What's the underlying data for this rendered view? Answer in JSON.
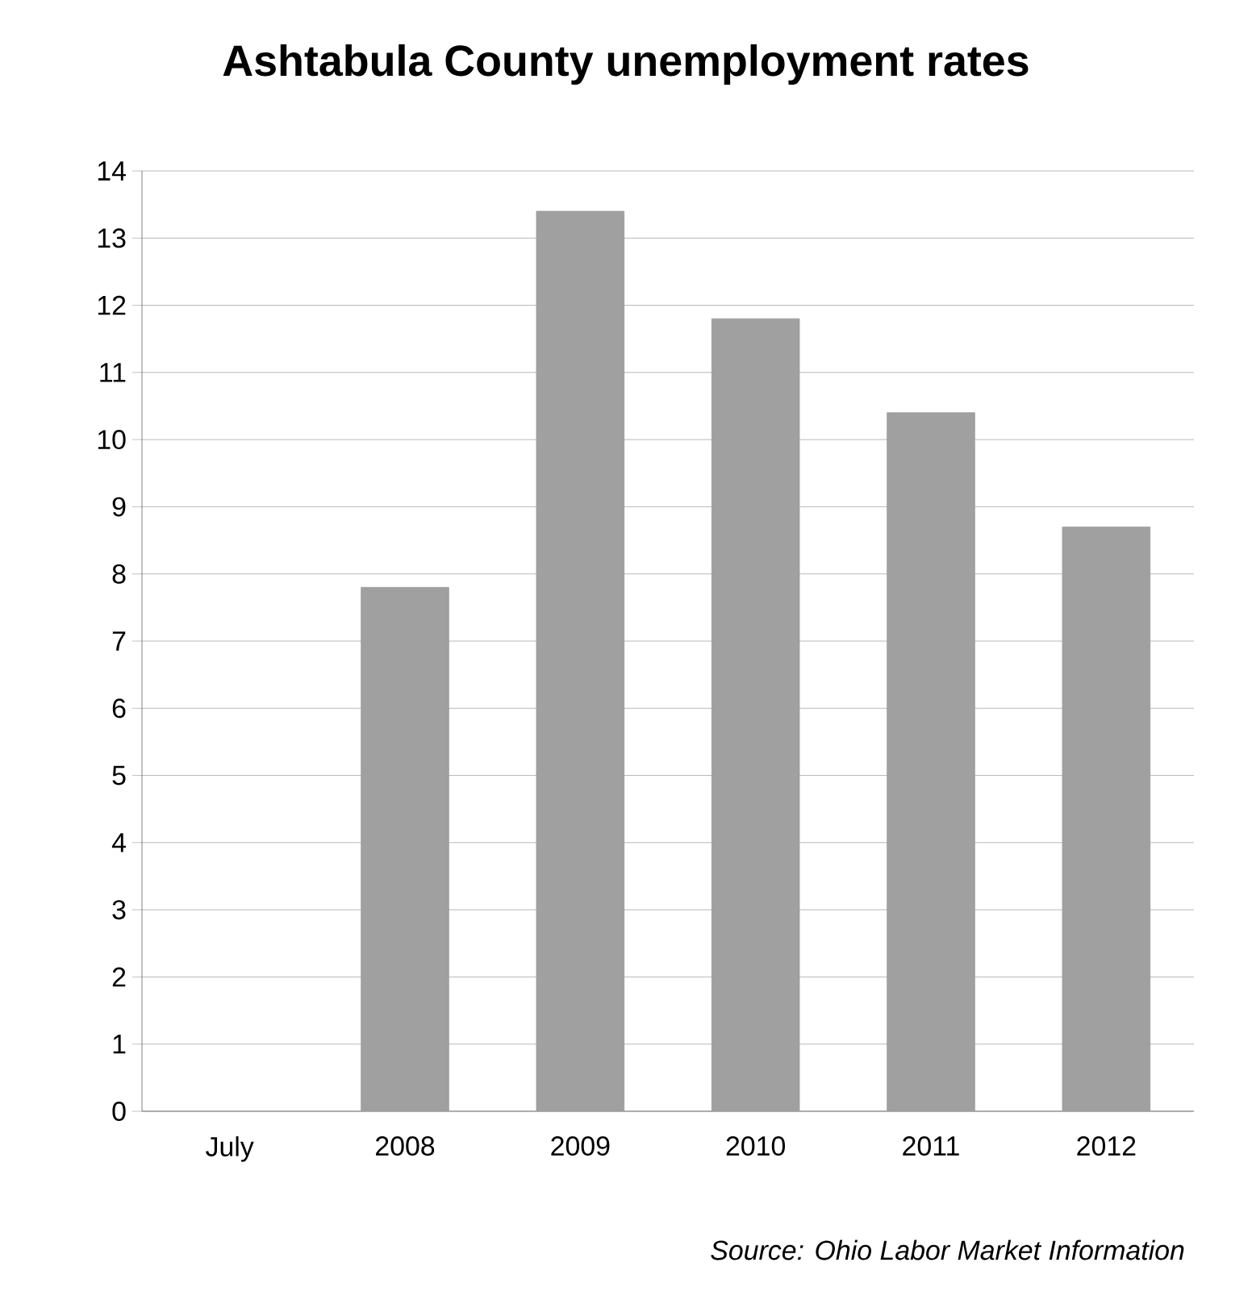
{
  "chart_data": {
    "type": "bar",
    "title": "Ashtabula County unemployment rates",
    "categories": [
      "July",
      "2008",
      "2009",
      "2010",
      "2011",
      "2012"
    ],
    "values": [
      null,
      7.8,
      13.4,
      11.8,
      10.4,
      8.7
    ],
    "color": "#a0a0a0",
    "ylim": [
      0,
      14
    ],
    "yticks": [
      0,
      1,
      2,
      3,
      4,
      5,
      6,
      7,
      8,
      9,
      10,
      11,
      12,
      13,
      14
    ],
    "grid": "y",
    "annotations": [
      "*Source: Ohio Labor Market Information*"
    ]
  }
}
